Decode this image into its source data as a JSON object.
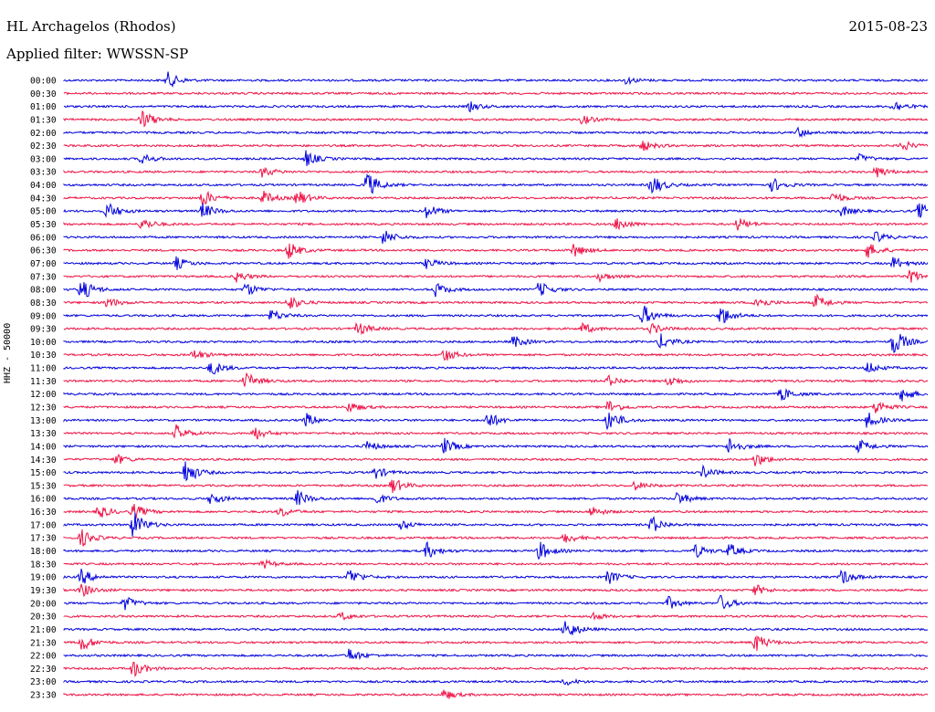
{
  "header": {
    "station": "HL Archagelos (Rhodos)",
    "date": "2015-08-23",
    "filter": "Applied filter: WWSSN-SP"
  },
  "chart_data": {
    "type": "line",
    "title": "HL Archagelos (Rhodos)",
    "ylabel": "HHZ - 50000",
    "colors": [
      "#0000dd",
      "#ee1144"
    ],
    "rows": [
      "00:00",
      "00:30",
      "01:00",
      "01:30",
      "02:00",
      "02:30",
      "03:00",
      "03:30",
      "04:00",
      "04:30",
      "05:00",
      "05:30",
      "06:00",
      "06:30",
      "07:00",
      "07:30",
      "08:00",
      "08:30",
      "09:00",
      "09:30",
      "10:00",
      "10:30",
      "11:00",
      "11:30",
      "12:00",
      "12:30",
      "13:00",
      "13:30",
      "14:00",
      "14:30",
      "15:00",
      "15:30",
      "16:00",
      "16:30",
      "17:00",
      "17:30",
      "18:00",
      "18:30",
      "19:00",
      "19:30",
      "20:00",
      "20:30",
      "21:00",
      "21:30",
      "22:00",
      "22:30",
      "23:00",
      "23:30"
    ],
    "events": [
      {
        "row": 0,
        "x": 0.12,
        "amp": 9
      },
      {
        "row": 0,
        "x": 0.65,
        "amp": 4
      },
      {
        "row": 2,
        "x": 0.47,
        "amp": 5
      },
      {
        "row": 2,
        "x": 0.96,
        "amp": 7
      },
      {
        "row": 3,
        "x": 0.09,
        "amp": 11
      },
      {
        "row": 3,
        "x": 0.6,
        "amp": 5
      },
      {
        "row": 4,
        "x": 0.85,
        "amp": 5
      },
      {
        "row": 5,
        "x": 0.67,
        "amp": 6
      },
      {
        "row": 5,
        "x": 0.97,
        "amp": 6
      },
      {
        "row": 6,
        "x": 0.09,
        "amp": 6
      },
      {
        "row": 6,
        "x": 0.28,
        "amp": 9
      },
      {
        "row": 6,
        "x": 0.92,
        "amp": 5
      },
      {
        "row": 7,
        "x": 0.23,
        "amp": 6
      },
      {
        "row": 7,
        "x": 0.94,
        "amp": 7
      },
      {
        "row": 8,
        "x": 0.35,
        "amp": 16
      },
      {
        "row": 8,
        "x": 0.68,
        "amp": 12
      },
      {
        "row": 8,
        "x": 0.82,
        "amp": 8
      },
      {
        "row": 9,
        "x": 0.16,
        "amp": 10
      },
      {
        "row": 9,
        "x": 0.23,
        "amp": 8
      },
      {
        "row": 9,
        "x": 0.27,
        "amp": 9
      },
      {
        "row": 9,
        "x": 0.89,
        "amp": 7
      },
      {
        "row": 10,
        "x": 0.05,
        "amp": 10
      },
      {
        "row": 10,
        "x": 0.16,
        "amp": 9
      },
      {
        "row": 10,
        "x": 0.42,
        "amp": 8
      },
      {
        "row": 10,
        "x": 0.9,
        "amp": 6
      },
      {
        "row": 10,
        "x": 0.99,
        "amp": 10
      },
      {
        "row": 11,
        "x": 0.09,
        "amp": 7
      },
      {
        "row": 11,
        "x": 0.64,
        "amp": 8
      },
      {
        "row": 11,
        "x": 0.78,
        "amp": 7
      },
      {
        "row": 12,
        "x": 0.37,
        "amp": 9
      },
      {
        "row": 12,
        "x": 0.94,
        "amp": 6
      },
      {
        "row": 13,
        "x": 0.26,
        "amp": 10
      },
      {
        "row": 13,
        "x": 0.59,
        "amp": 8
      },
      {
        "row": 13,
        "x": 0.93,
        "amp": 9
      },
      {
        "row": 14,
        "x": 0.13,
        "amp": 7
      },
      {
        "row": 14,
        "x": 0.42,
        "amp": 6
      },
      {
        "row": 14,
        "x": 0.96,
        "amp": 7
      },
      {
        "row": 15,
        "x": 0.2,
        "amp": 6
      },
      {
        "row": 15,
        "x": 0.62,
        "amp": 5
      },
      {
        "row": 15,
        "x": 0.98,
        "amp": 8
      },
      {
        "row": 16,
        "x": 0.02,
        "amp": 13
      },
      {
        "row": 16,
        "x": 0.21,
        "amp": 8
      },
      {
        "row": 16,
        "x": 0.43,
        "amp": 8
      },
      {
        "row": 16,
        "x": 0.55,
        "amp": 9
      },
      {
        "row": 17,
        "x": 0.05,
        "amp": 6
      },
      {
        "row": 17,
        "x": 0.26,
        "amp": 9
      },
      {
        "row": 17,
        "x": 0.8,
        "amp": 8
      },
      {
        "row": 17,
        "x": 0.87,
        "amp": 9
      },
      {
        "row": 18,
        "x": 0.24,
        "amp": 7
      },
      {
        "row": 18,
        "x": 0.67,
        "amp": 12
      },
      {
        "row": 18,
        "x": 0.76,
        "amp": 12
      },
      {
        "row": 19,
        "x": 0.34,
        "amp": 8
      },
      {
        "row": 19,
        "x": 0.6,
        "amp": 6
      },
      {
        "row": 19,
        "x": 0.68,
        "amp": 6
      },
      {
        "row": 20,
        "x": 0.52,
        "amp": 7
      },
      {
        "row": 20,
        "x": 0.69,
        "amp": 9
      },
      {
        "row": 20,
        "x": 0.96,
        "amp": 16
      },
      {
        "row": 21,
        "x": 0.15,
        "amp": 6
      },
      {
        "row": 21,
        "x": 0.44,
        "amp": 8
      },
      {
        "row": 22,
        "x": 0.17,
        "amp": 9
      },
      {
        "row": 22,
        "x": 0.93,
        "amp": 7
      },
      {
        "row": 23,
        "x": 0.21,
        "amp": 10
      },
      {
        "row": 23,
        "x": 0.63,
        "amp": 6
      },
      {
        "row": 23,
        "x": 0.7,
        "amp": 6
      },
      {
        "row": 24,
        "x": 0.83,
        "amp": 8
      },
      {
        "row": 24,
        "x": 0.97,
        "amp": 9
      },
      {
        "row": 25,
        "x": 0.33,
        "amp": 6
      },
      {
        "row": 25,
        "x": 0.63,
        "amp": 8
      },
      {
        "row": 25,
        "x": 0.94,
        "amp": 8
      },
      {
        "row": 26,
        "x": 0.28,
        "amp": 8
      },
      {
        "row": 26,
        "x": 0.49,
        "amp": 10
      },
      {
        "row": 26,
        "x": 0.63,
        "amp": 13
      },
      {
        "row": 26,
        "x": 0.93,
        "amp": 9
      },
      {
        "row": 27,
        "x": 0.13,
        "amp": 9
      },
      {
        "row": 27,
        "x": 0.22,
        "amp": 8
      },
      {
        "row": 28,
        "x": 0.35,
        "amp": 6
      },
      {
        "row": 28,
        "x": 0.44,
        "amp": 9
      },
      {
        "row": 28,
        "x": 0.77,
        "amp": 10
      },
      {
        "row": 28,
        "x": 0.92,
        "amp": 8
      },
      {
        "row": 29,
        "x": 0.06,
        "amp": 6
      },
      {
        "row": 29,
        "x": 0.8,
        "amp": 8
      },
      {
        "row": 30,
        "x": 0.14,
        "amp": 15
      },
      {
        "row": 30,
        "x": 0.36,
        "amp": 7
      },
      {
        "row": 30,
        "x": 0.74,
        "amp": 7
      },
      {
        "row": 31,
        "x": 0.38,
        "amp": 9
      },
      {
        "row": 31,
        "x": 0.66,
        "amp": 5
      },
      {
        "row": 32,
        "x": 0.17,
        "amp": 7
      },
      {
        "row": 32,
        "x": 0.27,
        "amp": 9
      },
      {
        "row": 32,
        "x": 0.36,
        "amp": 7
      },
      {
        "row": 32,
        "x": 0.71,
        "amp": 8
      },
      {
        "row": 33,
        "x": 0.04,
        "amp": 8
      },
      {
        "row": 33,
        "x": 0.08,
        "amp": 9
      },
      {
        "row": 33,
        "x": 0.25,
        "amp": 6
      },
      {
        "row": 33,
        "x": 0.61,
        "amp": 6
      },
      {
        "row": 34,
        "x": 0.08,
        "amp": 16
      },
      {
        "row": 34,
        "x": 0.68,
        "amp": 10
      },
      {
        "row": 34,
        "x": 0.39,
        "amp": 5
      },
      {
        "row": 35,
        "x": 0.02,
        "amp": 10
      },
      {
        "row": 35,
        "x": 0.58,
        "amp": 6
      },
      {
        "row": 36,
        "x": 0.42,
        "amp": 9
      },
      {
        "row": 36,
        "x": 0.55,
        "amp": 11
      },
      {
        "row": 36,
        "x": 0.73,
        "amp": 8
      },
      {
        "row": 36,
        "x": 0.77,
        "amp": 8
      },
      {
        "row": 37,
        "x": 0.23,
        "amp": 5
      },
      {
        "row": 38,
        "x": 0.02,
        "amp": 9
      },
      {
        "row": 38,
        "x": 0.33,
        "amp": 10
      },
      {
        "row": 38,
        "x": 0.63,
        "amp": 8
      },
      {
        "row": 38,
        "x": 0.9,
        "amp": 9
      },
      {
        "row": 39,
        "x": 0.02,
        "amp": 8
      },
      {
        "row": 39,
        "x": 0.8,
        "amp": 6
      },
      {
        "row": 40,
        "x": 0.07,
        "amp": 8
      },
      {
        "row": 40,
        "x": 0.7,
        "amp": 7
      },
      {
        "row": 40,
        "x": 0.76,
        "amp": 9
      },
      {
        "row": 41,
        "x": 0.32,
        "amp": 5
      },
      {
        "row": 41,
        "x": 0.61,
        "amp": 5
      },
      {
        "row": 42,
        "x": 0.58,
        "amp": 13
      },
      {
        "row": 43,
        "x": 0.02,
        "amp": 10
      },
      {
        "row": 43,
        "x": 0.8,
        "amp": 11
      },
      {
        "row": 44,
        "x": 0.33,
        "amp": 8
      },
      {
        "row": 45,
        "x": 0.08,
        "amp": 10
      },
      {
        "row": 46,
        "x": 0.58,
        "amp": 4
      },
      {
        "row": 47,
        "x": 0.44,
        "amp": 6
      }
    ]
  }
}
